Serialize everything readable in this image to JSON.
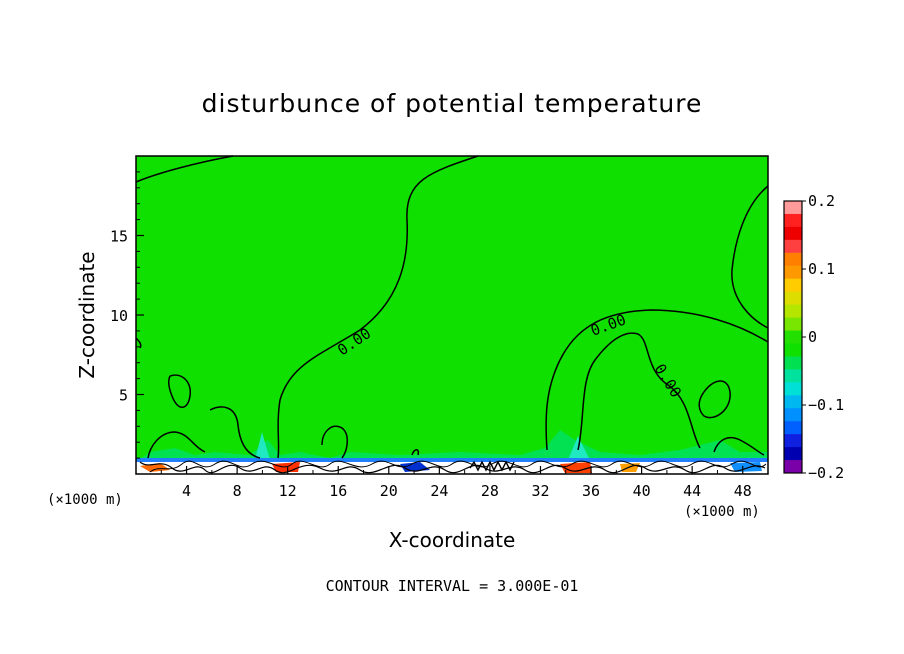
{
  "chart_data": {
    "type": "heatmap",
    "title": "disturbunce of potential temperature",
    "xlabel": "X-coordinate",
    "ylabel": "Z-coordinate",
    "x_unit": "(×1000 m)",
    "x_unit_right": "(×1000 m)",
    "xlim": [
      0,
      50
    ],
    "ylim": [
      0,
      20
    ],
    "x_ticks": [
      "4",
      "8",
      "12",
      "16",
      "20",
      "24",
      "28",
      "32",
      "36",
      "40",
      "44",
      "48"
    ],
    "y_ticks": [
      "5",
      "10",
      "15"
    ],
    "colorbar": {
      "range": [
        -0.2,
        0.2
      ],
      "tick_labels": [
        "0.2",
        "0.1",
        "0",
        "−0.1",
        "−0.2"
      ],
      "colors": [
        "#ff9a9a",
        "#ff2020",
        "#ee0000",
        "#ff4040",
        "#ff8000",
        "#ff9900",
        "#ffcc00",
        "#dddd00",
        "#b4e600",
        "#78e600",
        "#24e000",
        "#10e000",
        "#00e050",
        "#00e29e",
        "#00e0d6",
        "#00b8f0",
        "#0090ff",
        "#0060ff",
        "#1020e0",
        "#0000b0",
        "#7a00a8"
      ]
    },
    "contour_interval": "CONTOUR INTERVAL = 3.000E-01",
    "contour_labels": [
      "0.00",
      "0.00",
      "0.00"
    ],
    "background_value": 0
  },
  "colors": {
    "field": "#10e000",
    "contour": "#000000"
  }
}
